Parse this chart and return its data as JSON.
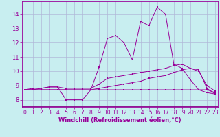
{
  "xlabel": "Windchill (Refroidissement éolien,°C)",
  "background_color": "#c8eef0",
  "line_color": "#990099",
  "grid_color": "#b0b8d8",
  "x_ticks": [
    0,
    1,
    2,
    3,
    4,
    5,
    6,
    7,
    8,
    9,
    10,
    11,
    12,
    13,
    14,
    15,
    16,
    17,
    18,
    19,
    20,
    21,
    22,
    23
  ],
  "y_ticks": [
    8,
    9,
    10,
    11,
    12,
    13,
    14
  ],
  "ylim": [
    7.5,
    14.9
  ],
  "xlim": [
    -0.3,
    23.3
  ],
  "series1": [
    8.7,
    8.8,
    8.8,
    8.9,
    8.9,
    8.0,
    8.0,
    8.0,
    8.7,
    10.3,
    12.3,
    12.5,
    12.0,
    10.8,
    13.5,
    13.2,
    14.5,
    14.0,
    10.5,
    10.2,
    9.4,
    8.7,
    8.5,
    8.4
  ],
  "series2": [
    8.7,
    8.7,
    8.8,
    8.9,
    8.9,
    8.8,
    8.8,
    8.8,
    8.8,
    9.1,
    9.5,
    9.6,
    9.7,
    9.8,
    9.9,
    10.0,
    10.1,
    10.2,
    10.4,
    10.5,
    10.2,
    10.1,
    8.8,
    8.4
  ],
  "series3": [
    8.7,
    8.7,
    8.7,
    8.7,
    8.7,
    8.7,
    8.7,
    8.7,
    8.7,
    8.7,
    8.7,
    8.7,
    8.7,
    8.7,
    8.7,
    8.7,
    8.7,
    8.7,
    8.7,
    8.7,
    8.7,
    8.7,
    8.7,
    8.5
  ],
  "series4": [
    8.7,
    8.7,
    8.7,
    8.7,
    8.7,
    8.7,
    8.7,
    8.7,
    8.7,
    8.8,
    8.9,
    9.0,
    9.1,
    9.2,
    9.3,
    9.5,
    9.6,
    9.7,
    9.9,
    10.1,
    10.2,
    10.0,
    9.0,
    8.6
  ],
  "bottom_bar_color": "#880088",
  "tick_fontsize": 5.5,
  "xlabel_fontsize": 6.0
}
